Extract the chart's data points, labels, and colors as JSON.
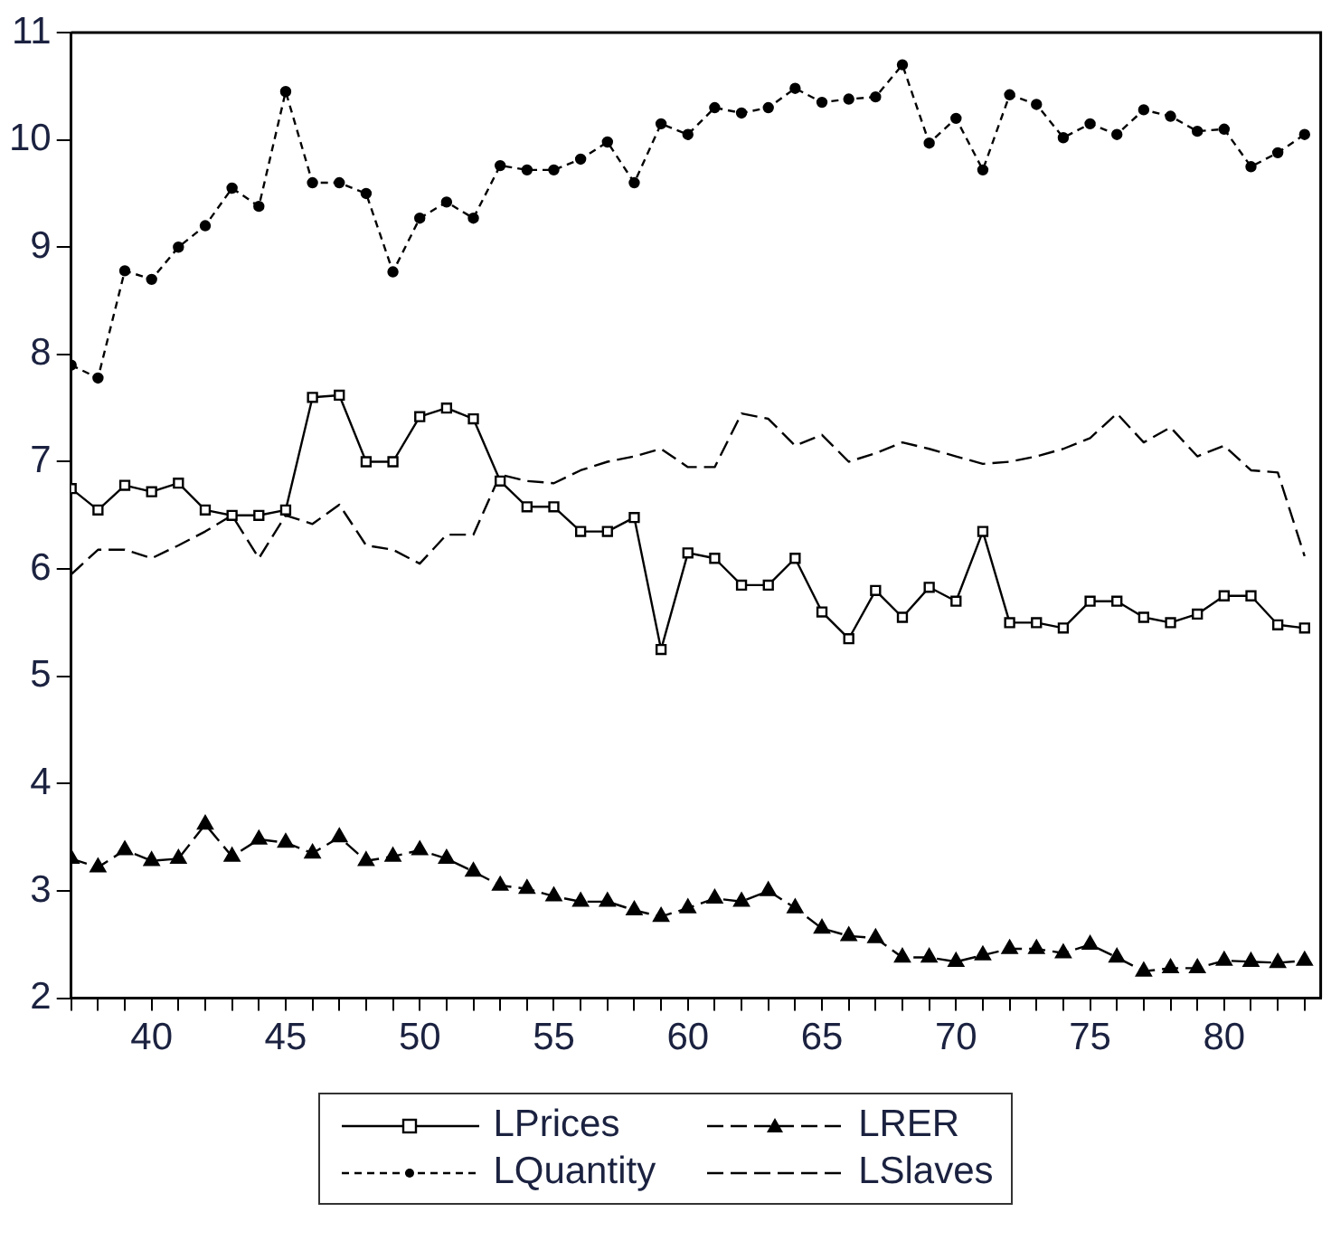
{
  "chart_data": {
    "type": "line",
    "x": [
      37,
      38,
      39,
      40,
      41,
      42,
      43,
      44,
      45,
      46,
      47,
      48,
      49,
      50,
      51,
      52,
      53,
      54,
      55,
      56,
      57,
      58,
      59,
      60,
      61,
      62,
      63,
      64,
      65,
      66,
      67,
      68,
      69,
      70,
      71,
      72,
      73,
      74,
      75,
      76,
      77,
      78,
      79,
      80,
      81,
      82,
      83
    ],
    "series": [
      {
        "name": "LPrices",
        "color": "#000000",
        "marker": "square",
        "line_style": "solid",
        "values": [
          6.75,
          6.55,
          6.78,
          6.72,
          6.8,
          6.55,
          6.5,
          6.5,
          6.55,
          7.6,
          7.62,
          7.0,
          7.0,
          7.42,
          7.5,
          7.4,
          6.82,
          6.58,
          6.58,
          6.35,
          6.35,
          6.48,
          5.25,
          6.15,
          6.1,
          5.85,
          5.85,
          6.1,
          5.6,
          5.35,
          5.8,
          5.55,
          5.83,
          5.7,
          6.35,
          5.5,
          5.5,
          5.45,
          5.7,
          5.7,
          5.55,
          5.5,
          5.58,
          5.75,
          5.75,
          5.48,
          5.45
        ]
      },
      {
        "name": "LRER",
        "color": "#000000",
        "marker": "triangle",
        "line_style": "dashed",
        "values": [
          3.3,
          3.22,
          3.38,
          3.28,
          3.3,
          3.62,
          3.32,
          3.48,
          3.45,
          3.35,
          3.5,
          3.28,
          3.32,
          3.38,
          3.3,
          3.18,
          3.05,
          3.02,
          2.95,
          2.9,
          2.9,
          2.82,
          2.76,
          2.84,
          2.93,
          2.9,
          3.0,
          2.84,
          2.65,
          2.58,
          2.56,
          2.38,
          2.38,
          2.34,
          2.4,
          2.46,
          2.46,
          2.42,
          2.5,
          2.38,
          2.25,
          2.28,
          2.28,
          2.35,
          2.34,
          2.33,
          2.35
        ]
      },
      {
        "name": "LQuantity",
        "color": "#000000",
        "marker": "circle",
        "line_style": "dotted",
        "values": [
          7.9,
          7.78,
          8.78,
          8.7,
          9.0,
          9.2,
          9.55,
          9.38,
          10.45,
          9.6,
          9.6,
          9.5,
          8.77,
          9.27,
          9.42,
          9.27,
          9.76,
          9.72,
          9.72,
          9.82,
          9.98,
          9.6,
          10.15,
          10.05,
          10.3,
          10.25,
          10.3,
          10.48,
          10.35,
          10.38,
          10.4,
          10.7,
          9.97,
          10.2,
          9.72,
          10.42,
          10.33,
          10.02,
          10.15,
          10.05,
          10.28,
          10.22,
          10.08,
          10.1,
          9.75,
          9.88,
          10.05
        ]
      },
      {
        "name": "LSlaves",
        "color": "#000000",
        "marker": "none",
        "line_style": "dashed",
        "values": [
          5.95,
          6.18,
          6.18,
          6.1,
          6.22,
          6.35,
          6.5,
          6.1,
          6.5,
          6.42,
          6.6,
          6.22,
          6.18,
          6.05,
          6.32,
          6.32,
          6.88,
          6.82,
          6.8,
          6.92,
          7.0,
          7.05,
          7.12,
          6.95,
          6.95,
          7.45,
          7.4,
          7.15,
          7.25,
          7.0,
          7.08,
          7.18,
          7.12,
          7.05,
          6.98,
          7.0,
          7.05,
          7.12,
          7.22,
          7.45,
          7.18,
          7.32,
          7.05,
          7.15,
          6.92,
          6.9,
          6.12
        ]
      }
    ],
    "xlim": [
      37,
      83.6
    ],
    "xticks": [
      {
        "value": 37,
        "label": null
      },
      {
        "value": 38,
        "label": null
      },
      {
        "value": 39,
        "label": null
      },
      40,
      {
        "value": 41,
        "label": null
      },
      {
        "value": 42,
        "label": null
      },
      {
        "value": 43,
        "label": null
      },
      {
        "value": 44,
        "label": null
      },
      45,
      {
        "value": 46,
        "label": null
      },
      {
        "value": 47,
        "label": null
      },
      {
        "value": 48,
        "label": null
      },
      {
        "value": 49,
        "label": null
      },
      50,
      {
        "value": 51,
        "label": null
      },
      {
        "value": 52,
        "label": null
      },
      {
        "value": 53,
        "label": null
      },
      {
        "value": 54,
        "label": null
      },
      55,
      {
        "value": 56,
        "label": null
      },
      {
        "value": 57,
        "label": null
      },
      {
        "value": 58,
        "label": null
      },
      {
        "value": 59,
        "label": null
      },
      60,
      {
        "value": 61,
        "label": null
      },
      {
        "value": 62,
        "label": null
      },
      {
        "value": 63,
        "label": null
      },
      {
        "value": 64,
        "label": null
      },
      65,
      {
        "value": 66,
        "label": null
      },
      {
        "value": 67,
        "label": null
      },
      {
        "value": 68,
        "label": null
      },
      {
        "value": 69,
        "label": null
      },
      70,
      {
        "value": 71,
        "label": null
      },
      {
        "value": 72,
        "label": null
      },
      {
        "value": 73,
        "label": null
      },
      {
        "value": 74,
        "label": null
      },
      75,
      {
        "value": 76,
        "label": null
      },
      {
        "value": 77,
        "label": null
      },
      {
        "value": 78,
        "label": null
      },
      {
        "value": 79,
        "label": null
      },
      80,
      {
        "value": 81,
        "label": null
      },
      {
        "value": 82,
        "label": null
      },
      {
        "value": 83,
        "label": null
      }
    ],
    "ylim": [
      2,
      11
    ],
    "yticks": [
      2,
      3,
      4,
      5,
      6,
      7,
      8,
      9,
      10,
      11
    ],
    "grid": false,
    "legend": "bottom"
  }
}
